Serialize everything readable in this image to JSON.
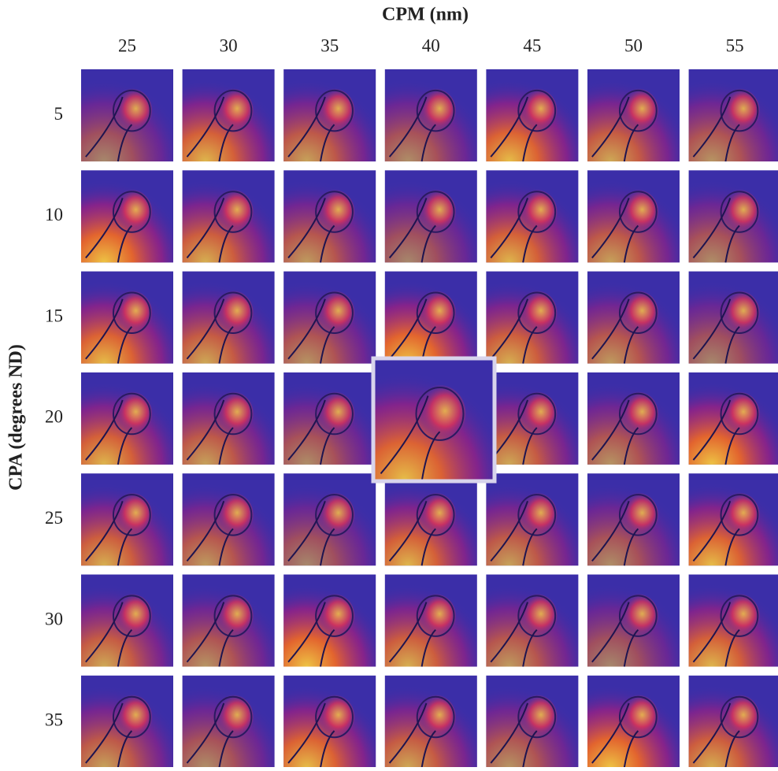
{
  "header": {
    "title": "CPM (nm)",
    "columns": [
      "25",
      "30",
      "35",
      "40",
      "45",
      "50",
      "55"
    ]
  },
  "side": {
    "title": "CPA (degrees ND)",
    "rows": [
      "5",
      "10",
      "15",
      "20",
      "25",
      "30",
      "35"
    ]
  }
}
